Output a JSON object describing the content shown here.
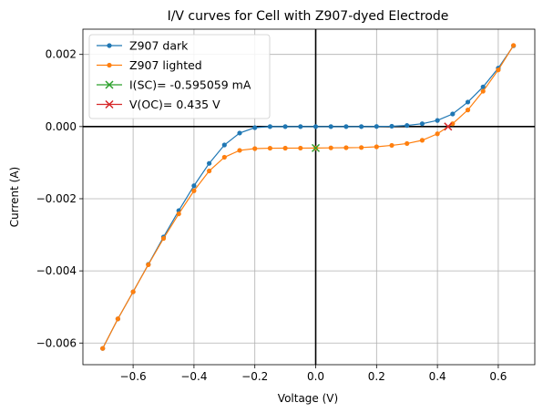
{
  "chart_data": {
    "type": "line",
    "title": "I/V curves for Cell with Z907-dyed Electrode",
    "xlabel": "Voltage (V)",
    "ylabel": "Current (A)",
    "xlim": [
      -0.765,
      0.72
    ],
    "ylim": [
      -0.0066,
      0.0027
    ],
    "xticks": [
      -0.6,
      -0.4,
      -0.2,
      0.0,
      0.2,
      0.4,
      0.6
    ],
    "xtick_labels": [
      "−0.6",
      "−0.4",
      "−0.2",
      "0.0",
      "0.2",
      "0.4",
      "0.6"
    ],
    "yticks": [
      -0.006,
      -0.004,
      -0.002,
      0.0,
      0.002
    ],
    "ytick_labels": [
      "−0.006",
      "−0.004",
      "−0.002",
      "0.000",
      "0.002"
    ],
    "grid": true,
    "legend_position": "top-left",
    "x": [
      -0.7,
      -0.65,
      -0.6,
      -0.55,
      -0.5,
      -0.45,
      -0.4,
      -0.35,
      -0.3,
      -0.25,
      -0.2,
      -0.15,
      -0.1,
      -0.05,
      0.0,
      0.05,
      0.1,
      0.15,
      0.2,
      0.25,
      0.3,
      0.35,
      0.4,
      0.45,
      0.5,
      0.55,
      0.6,
      0.65
    ],
    "series": [
      {
        "name": "Z907 dark",
        "color": "#1f77b4",
        "values": [
          -0.00615,
          -0.00533,
          -0.00458,
          -0.00382,
          -0.00306,
          -0.00233,
          -0.00164,
          -0.00102,
          -0.00051,
          -0.00018,
          -3e-05,
          0.0,
          0.0,
          0.0,
          0.0,
          0.0,
          0.0,
          0.0,
          3e-06,
          1e-05,
          3e-05,
          8e-05,
          0.00017,
          0.00035,
          0.00068,
          0.0011,
          0.00162,
          0.00224
        ]
      },
      {
        "name": "Z907 lighted",
        "color": "#ff7f0e",
        "values": [
          -0.00615,
          -0.00533,
          -0.00458,
          -0.00383,
          -0.0031,
          -0.00242,
          -0.00178,
          -0.00123,
          -0.00085,
          -0.00066,
          -0.00061,
          -0.0006,
          -0.000598,
          -0.000597,
          -0.000595,
          -0.00059,
          -0.000585,
          -0.00058,
          -0.00056,
          -0.00052,
          -0.00047,
          -0.00038,
          -0.0002,
          8e-05,
          0.00046,
          0.00098,
          0.00157,
          0.00225
        ]
      }
    ],
    "markers": [
      {
        "name": "I(SC)= -0.595059 mA",
        "color": "#2ca02c",
        "x": 0.0,
        "y": -0.000595059
      },
      {
        "name": "V(OC)= 0.435 V",
        "color": "#d62728",
        "x": 0.435,
        "y": 0.0
      }
    ]
  }
}
